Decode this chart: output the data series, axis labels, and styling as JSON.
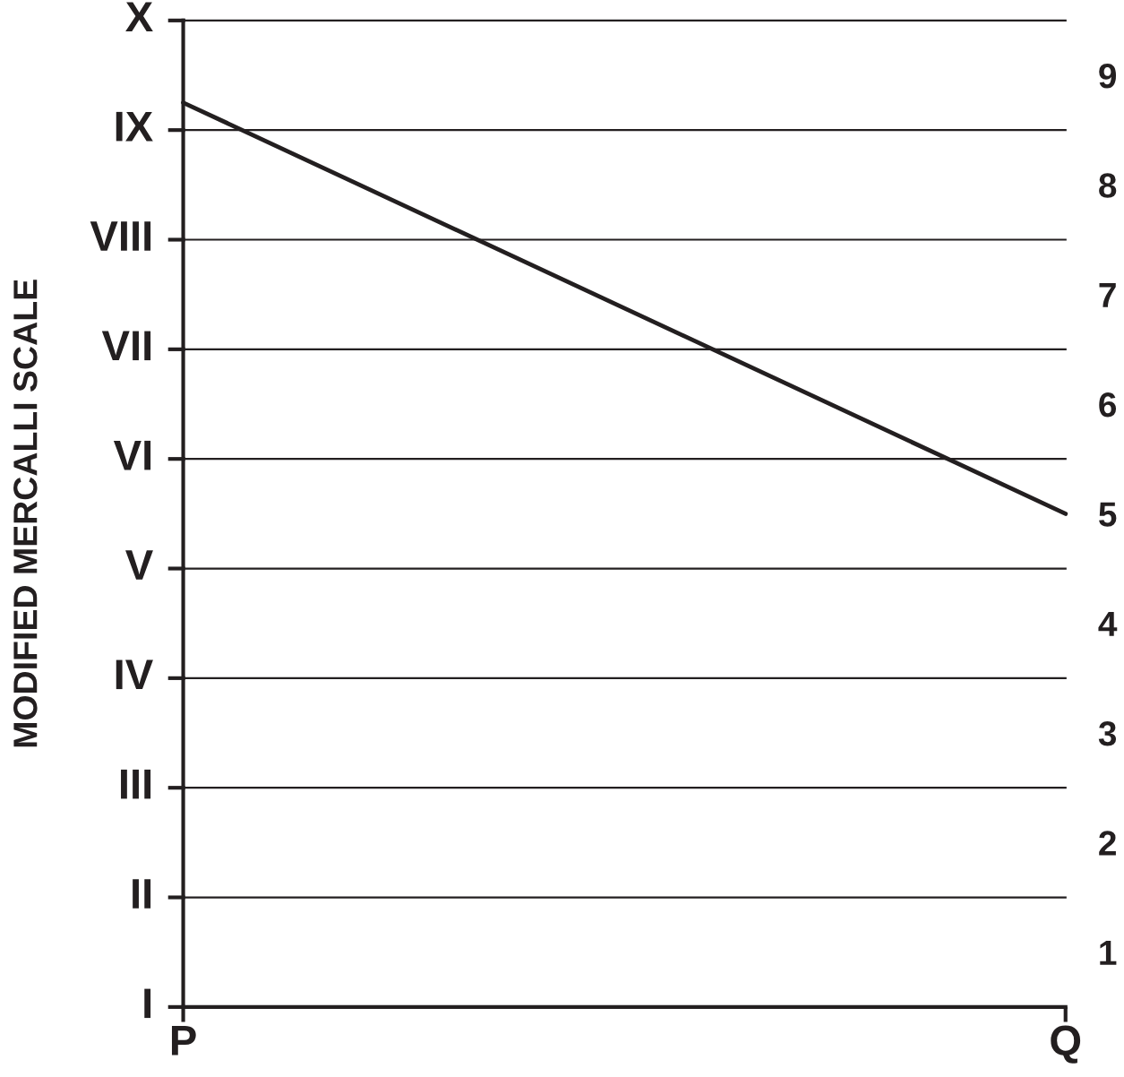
{
  "chart_data": {
    "type": "line",
    "ylabel": "MODIFIED MERCALLI SCALE",
    "categories": [
      "P",
      "Q"
    ],
    "series": [
      {
        "color": "#231f20",
        "values": [
          8.75,
          5.0
        ]
      }
    ],
    "ylim": [
      0.5,
      9.5
    ],
    "yticks": [
      1,
      2,
      3,
      4,
      5,
      6,
      7,
      8,
      9
    ],
    "annotations": [
      "I"
    ],
    "ref_lines": [
      {
        "axis": "y",
        "value": 1.5,
        "label": "II",
        "color": "#231f20"
      },
      {
        "axis": "y",
        "value": 2.5,
        "label": "III",
        "color": "#231f20"
      },
      {
        "axis": "y",
        "value": 3.5,
        "label": "IV",
        "color": "#231f20"
      },
      {
        "axis": "y",
        "value": 4.5,
        "label": "V",
        "color": "#231f20"
      },
      {
        "axis": "y",
        "value": 5.5,
        "label": "VI",
        "color": "#231f20"
      },
      {
        "axis": "y",
        "value": 6.5,
        "label": "VII",
        "color": "#231f20"
      },
      {
        "axis": "y",
        "value": 7.5,
        "label": "VIII",
        "color": "#231f20"
      },
      {
        "axis": "y",
        "value": 8.5,
        "label": "IX",
        "color": "#231f20"
      },
      {
        "axis": "y",
        "value": 9.5,
        "label": "X",
        "color": "#231f20"
      }
    ],
    "marker": "none",
    "line_style": "solid"
  }
}
